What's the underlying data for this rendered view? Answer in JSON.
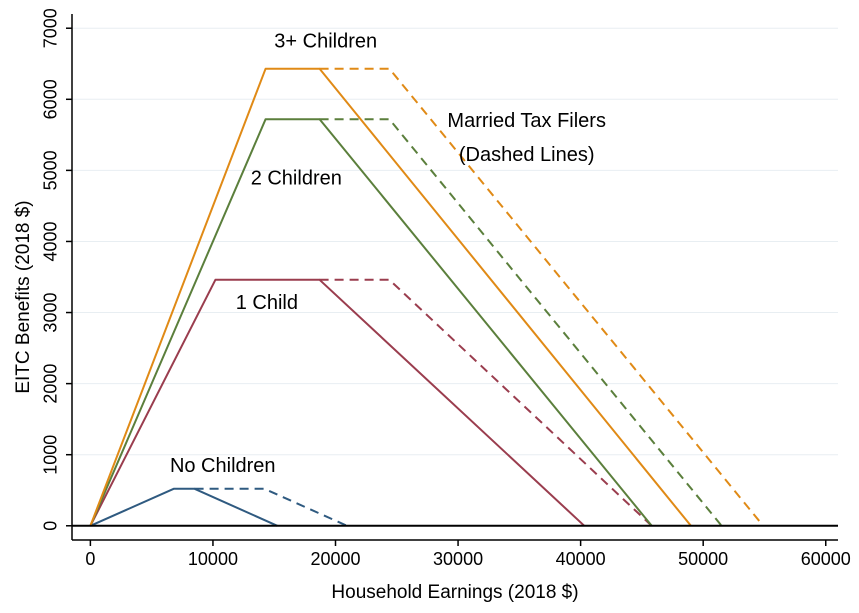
{
  "chart_data": {
    "type": "line",
    "xlabel": "Household Earnings (2018 $)",
    "ylabel": "EITC Benefits (2018 $)",
    "xlim": [
      -1500,
      61000
    ],
    "ylim": [
      -200,
      7200
    ],
    "xticks": [
      0,
      10000,
      20000,
      30000,
      40000,
      50000,
      60000
    ],
    "xtick_labels": [
      "0",
      "10000",
      "20000",
      "30000",
      "40000",
      "50000",
      "60000"
    ],
    "yticks": [
      0,
      1000,
      2000,
      3000,
      4000,
      5000,
      6000,
      7000
    ],
    "ytick_labels": [
      "0",
      "1000",
      "2000",
      "3000",
      "4000",
      "5000",
      "6000",
      "7000"
    ],
    "grid": "horizontal",
    "colors": {
      "no_children": "#2f5a80",
      "one_child": "#9a3d4e",
      "two_children": "#5b7f3c",
      "three_children": "#e08a16",
      "grid": "#e8eef2",
      "axis": "#000000"
    },
    "series": [
      {
        "key": "no_children",
        "style": "solid",
        "x": [
          0,
          6800,
          8500,
          15250
        ],
        "y": [
          0,
          520,
          520,
          0
        ]
      },
      {
        "key": "no_children",
        "style": "dashed",
        "x": [
          8500,
          14200,
          20950
        ],
        "y": [
          520,
          520,
          0
        ]
      },
      {
        "key": "one_child",
        "style": "solid",
        "x": [
          0,
          10200,
          18700,
          40300
        ],
        "y": [
          0,
          3460,
          3460,
          0
        ]
      },
      {
        "key": "one_child",
        "style": "dashed",
        "x": [
          18700,
          24400,
          45800
        ],
        "y": [
          3460,
          3460,
          0
        ]
      },
      {
        "key": "two_children",
        "style": "solid",
        "x": [
          0,
          14300,
          18700,
          45800
        ],
        "y": [
          0,
          5720,
          5720,
          0
        ]
      },
      {
        "key": "two_children",
        "style": "dashed",
        "x": [
          18700,
          24400,
          51500
        ],
        "y": [
          5720,
          5720,
          0
        ]
      },
      {
        "key": "three_children",
        "style": "solid",
        "x": [
          0,
          14300,
          18700,
          49000
        ],
        "y": [
          0,
          6430,
          6430,
          0
        ]
      },
      {
        "key": "three_children",
        "style": "dashed",
        "x": [
          18700,
          24400,
          54900
        ],
        "y": [
          6430,
          6430,
          0
        ]
      }
    ],
    "annotations": [
      {
        "text": "3+ Children",
        "x": 19200,
        "y": 6730
      },
      {
        "text": "2 Children",
        "x": 16800,
        "y": 4800
      },
      {
        "text": "1 Child",
        "x": 14400,
        "y": 3050
      },
      {
        "text": "No Children",
        "x": 10800,
        "y": 760
      },
      {
        "text": "Married Tax Filers",
        "x": 35600,
        "y": 5610
      },
      {
        "text": "(Dashed Lines)",
        "x": 35600,
        "y": 5130
      }
    ]
  }
}
